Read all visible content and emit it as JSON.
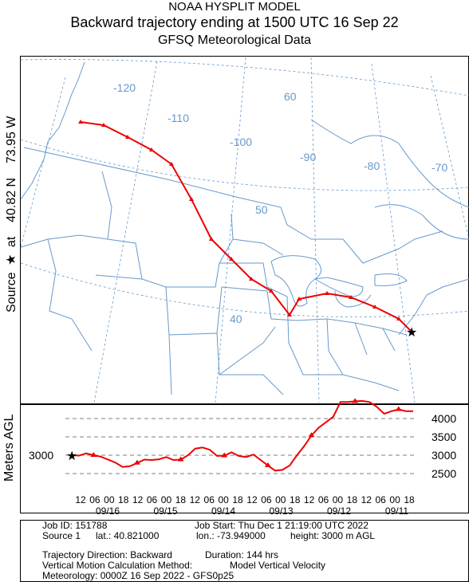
{
  "header": {
    "line1": "NOAA HYSPLIT MODEL",
    "line2": "Backward trajectory ending at 1500 UTC 16 Sep 22",
    "line3": "GFSQ Meteorological Data"
  },
  "source_label": {
    "text_before": "Source",
    "star": "★",
    "text_after": "at    40.82 N    73.95 W"
  },
  "map": {
    "longitude_labels": [
      "-120",
      "-110",
      "-100",
      "-90",
      "-80",
      "-70"
    ],
    "latitude_labels": [
      "60",
      "50",
      "40"
    ],
    "colors": {
      "trajectory": "#ee0000",
      "boundaries": "#6699cc",
      "grid": "#6699cc"
    }
  },
  "chart_data": {
    "type": "line",
    "series": [
      {
        "values": [
          3000,
          2990,
          3050,
          3000,
          2960,
          2880,
          2800,
          2680,
          2700,
          2790,
          2880,
          2870,
          2890,
          2950,
          2870,
          2880,
          3000,
          3180,
          3210,
          3150,
          2980,
          2990,
          3080,
          2980,
          2950,
          3020,
          2870,
          2720,
          2580,
          2600,
          2720,
          3000,
          3250,
          3540,
          3750,
          3900,
          4050,
          4450,
          4450,
          4470,
          4480,
          4450,
          4320,
          4130,
          4200,
          4250,
          4200,
          4200
        ]
      }
    ],
    "ylabel": "Meters AGL",
    "yticks": [
      2500,
      3000,
      3500,
      4000
    ],
    "source_height_label": "3000",
    "x_hour_labels": [
      "12",
      "06",
      "00",
      "18",
      "12",
      "06",
      "00",
      "18",
      "12",
      "06",
      "00",
      "18",
      "12",
      "06",
      "00",
      "18",
      "12",
      "06",
      "00",
      "18",
      "12",
      "06",
      "00",
      "18"
    ],
    "x_date_labels": [
      "09/16",
      "09/15",
      "09/14",
      "09/13",
      "09/12",
      "09/11"
    ]
  },
  "info": {
    "job_id": "Job ID: 151788",
    "job_start": "Job Start: Thu Dec  1 21:19:00 UTC 2022",
    "source": "Source 1",
    "lat": "lat.: 40.821000",
    "lon": "lon.: -73.949000",
    "height": "height: 3000 m AGL",
    "direction": "Trajectory Direction: Backward",
    "duration": "Duration: 144 hrs",
    "vertical": "Vertical Motion Calculation Method:",
    "vertical_value": "Model Vertical Velocity",
    "meteorology": "Meteorology: 0000Z 16 Sep 2022 - GFS0p25"
  }
}
